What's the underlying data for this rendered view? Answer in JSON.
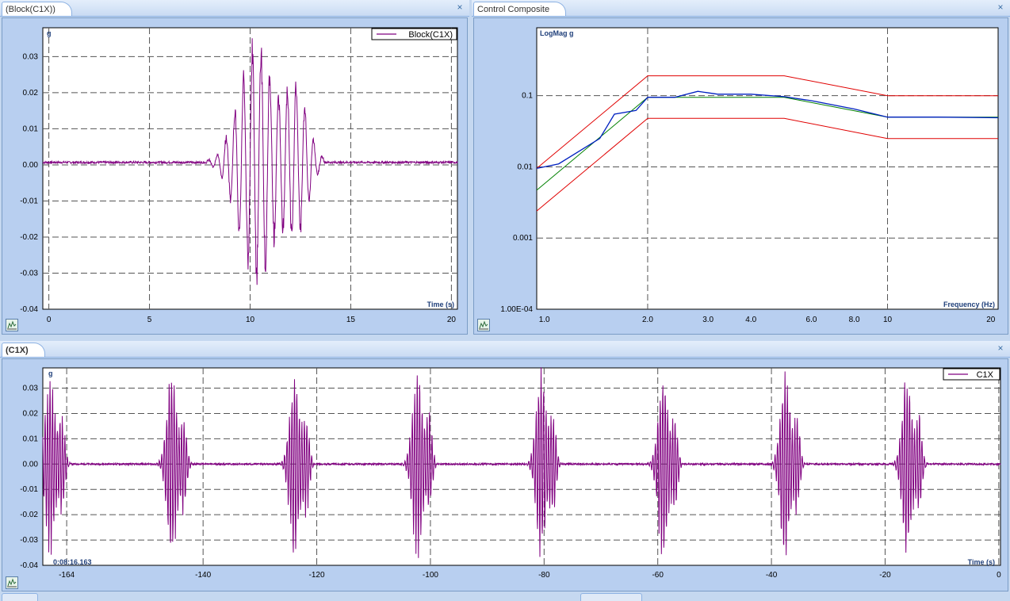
{
  "panels": {
    "block": {
      "tab_title": "(Block(C1X))",
      "close_glyph": "×",
      "y_unit": "g",
      "x_title": "Time (s)",
      "legend": "Block(C1X)",
      "x_ticks": [
        "0",
        "5",
        "10",
        "15",
        "20"
      ],
      "y_ticks": [
        "0.03",
        "0.02",
        "0.01",
        "0.00",
        "-0.01",
        "-0.02",
        "-0.03",
        "-0.04"
      ]
    },
    "control": {
      "tab_title": "Control Composite",
      "close_glyph": "×",
      "y_unit": "LogMag g",
      "x_title": "Frequency (Hz)",
      "x_ticks": [
        "1.0",
        "2.0",
        "3.0",
        "4.0",
        "6.0",
        "8.0",
        "10",
        "20"
      ],
      "y_ticks": [
        "0.1",
        "0.01",
        "0.001",
        "1.00E-04"
      ]
    },
    "c1x": {
      "tab_title": "(C1X)",
      "close_glyph": "×",
      "y_unit": "g",
      "x_title": "Time (s)",
      "legend": "C1X",
      "timestamp": "0:08:16.163",
      "x_ticks": [
        "-164",
        "-140",
        "-120",
        "-100",
        "-80",
        "-60",
        "-40",
        "-20",
        "0"
      ],
      "y_ticks": [
        "0.03",
        "0.02",
        "0.01",
        "0.00",
        "-0.01",
        "-0.02",
        "-0.03",
        "-0.04"
      ]
    }
  },
  "icons": [
    "chart-icon",
    "close-icon"
  ],
  "colors": {
    "trace": "#800080",
    "tolerance": "#e00000",
    "reference": "#008000",
    "control": "#0020c0",
    "axis_text": "#1f3f7a"
  },
  "chart_data": [
    {
      "type": "line",
      "xlabel": "Time (s)",
      "ylabel": "g",
      "xlim": [
        -0.3,
        20.3
      ],
      "ylim": [
        -0.04,
        0.038
      ],
      "grid": true,
      "legend": "top-right",
      "series": [
        {
          "name": "Block(C1X)",
          "description": "transient burst ~7.5 s to 13.5 s, peaks about +0.033 / -0.032"
        }
      ]
    },
    {
      "type": "line",
      "xlabel": "Frequency (Hz)",
      "ylabel": "LogMag g",
      "log_x": true,
      "log_y": true,
      "xlim": [
        0.95,
        21
      ],
      "ylim": [
        0.0001,
        0.9
      ],
      "grid": true,
      "series": [
        {
          "x": [
            0.95,
            2.0,
            5.0,
            10.0,
            21.0
          ],
          "y": [
            0.0095,
            0.19,
            0.19,
            0.1,
            0.1
          ]
        },
        {
          "x": [
            0.95,
            2.0,
            5.0,
            10.0,
            21.0
          ],
          "y": [
            0.0024,
            0.048,
            0.048,
            0.025,
            0.025
          ]
        },
        {
          "x": [
            0.95,
            2.0,
            5.0,
            10.0,
            21.0
          ],
          "y": [
            0.0047,
            0.095,
            0.095,
            0.05,
            0.05
          ]
        },
        {
          "x": [
            0.95,
            1.1,
            1.45,
            1.6,
            1.85,
            2.0,
            2.4,
            2.8,
            3.2,
            4.0,
            5.0,
            6.0,
            8.0,
            10.0,
            14.0,
            21.0
          ],
          "y": [
            0.0095,
            0.011,
            0.025,
            0.055,
            0.062,
            0.095,
            0.095,
            0.115,
            0.105,
            0.105,
            0.097,
            0.085,
            0.065,
            0.05,
            0.05,
            0.049
          ]
        }
      ]
    },
    {
      "type": "line",
      "xlabel": "Time (s)",
      "ylabel": "g",
      "xlim": [
        -168.2,
        0.3
      ],
      "ylim": [
        -0.04,
        0.038
      ],
      "grid": true,
      "legend": "top-right",
      "series": [
        {
          "name": "C1X",
          "burst_centers": [
            -166.6,
            -145.2,
            -123.6,
            -102.0,
            -80.2,
            -58.8,
            -37.3,
            -15.8
          ]
        }
      ]
    }
  ]
}
